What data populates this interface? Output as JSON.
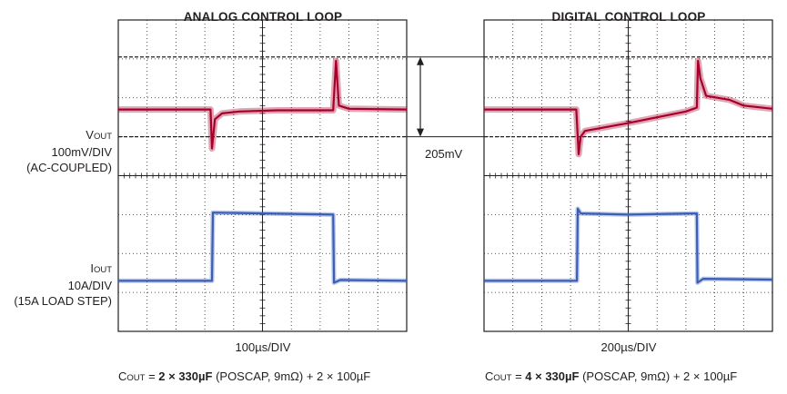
{
  "chart_data": [
    {
      "type": "line",
      "title": "ANALOG CONTROL LOOP",
      "xlabel": "100µs/DIV",
      "x_divisions": 10,
      "y_divisions": 8,
      "series": [
        {
          "name": "VOUT",
          "unit": "V",
          "scale": "100mV/DIV (AC-COUPLED)",
          "x_div": [
            0,
            3.2,
            3.25,
            3.35,
            3.6,
            4.2,
            5.5,
            7.0,
            7.45,
            7.55,
            7.65,
            8.0,
            10
          ],
          "y_div": [
            5.7,
            5.7,
            4.7,
            5.45,
            5.6,
            5.65,
            5.68,
            5.68,
            5.68,
            6.95,
            5.8,
            5.72,
            5.7
          ]
        },
        {
          "name": "IOUT",
          "unit": "A",
          "scale": "10A/DIV (15A LOAD STEP)",
          "x_div": [
            0,
            3.25,
            3.28,
            7.45,
            7.48,
            7.7,
            10
          ],
          "y_div": [
            1.3,
            1.3,
            3.05,
            3.0,
            1.25,
            1.32,
            1.3
          ]
        }
      ],
      "caption": {
        "prefix": "C",
        "sub": "OUT",
        "eq": " = ",
        "bold": "2 × 330µF",
        "rest": " (POSCAP, 9mΩ) + 2 × 100µF"
      }
    },
    {
      "type": "line",
      "title": "DIGITAL CONTROL LOOP",
      "xlabel": "200µs/DIV",
      "x_divisions": 10,
      "y_divisions": 8,
      "series": [
        {
          "name": "VOUT",
          "x_div": [
            0,
            3.2,
            3.28,
            3.35,
            3.5,
            5.0,
            7.0,
            7.38,
            7.42,
            7.5,
            7.7,
            8.5,
            9.0,
            10
          ],
          "y_div": [
            5.7,
            5.7,
            4.55,
            5.0,
            5.15,
            5.35,
            5.65,
            5.75,
            6.95,
            6.5,
            6.05,
            5.95,
            5.8,
            5.72
          ]
        },
        {
          "name": "IOUT",
          "x_div": [
            0,
            3.22,
            3.25,
            3.35,
            5.0,
            7.38,
            7.4,
            7.6,
            10
          ],
          "y_div": [
            1.3,
            1.3,
            3.15,
            3.03,
            3.0,
            3.03,
            1.25,
            1.35,
            1.33
          ]
        }
      ],
      "caption": {
        "prefix": "C",
        "sub": "OUT",
        "eq": " = ",
        "bold": "4 × 330µF",
        "rest": " (POSCAP, 9mΩ) + 2 × 100µF"
      }
    }
  ],
  "labels": {
    "vout_main": "V",
    "vout_sub": "OUT",
    "vout_scale": "100mV/DIV",
    "vout_mode": "(AC-COUPLED)",
    "iout_main": "I",
    "iout_sub": "OUT",
    "iout_scale": "10A/DIV",
    "iout_mode": "(15A LOAD STEP)",
    "delta": "205mV"
  },
  "colors": {
    "vout": "#a6002a",
    "iout": "#3a5eb6",
    "grid": "#231f20",
    "marker_line": "#231f20"
  }
}
